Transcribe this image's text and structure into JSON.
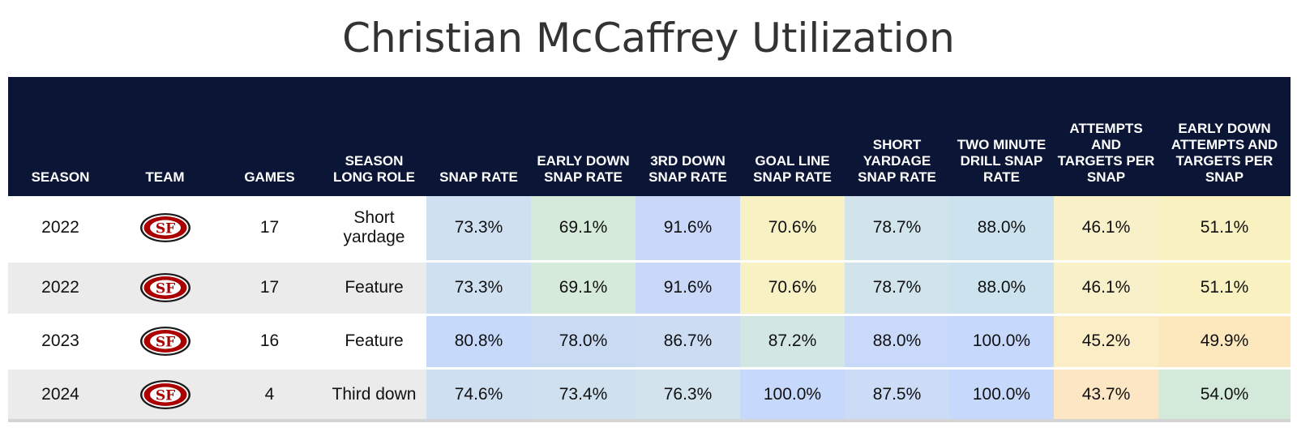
{
  "title": "Christian McCaffrey Utilization",
  "chart_data": {
    "type": "table",
    "title": "Christian McCaffrey Utilization",
    "columns": [
      "SEASON",
      "TEAM",
      "GAMES",
      "SEASON LONG ROLE",
      "SNAP RATE",
      "EARLY DOWN SNAP RATE",
      "3RD DOWN SNAP RATE",
      "GOAL LINE SNAP RATE",
      "SHORT YARDAGE SNAP RATE",
      "TWO MINUTE DRILL SNAP RATE",
      "ATTEMPTS AND TARGETS PER SNAP",
      "EARLY DOWN ATTEMPTS AND TARGETS PER SNAP"
    ],
    "team_logo": "49ers-logo",
    "rows": [
      {
        "season": "2022",
        "team": "49ers-logo",
        "games": "17",
        "role": "Short yardage",
        "snap_rate": "73.3%",
        "early_down_snap_rate": "69.1%",
        "third_down_snap_rate": "91.6%",
        "goal_line_snap_rate": "70.6%",
        "short_yardage_snap_rate": "78.7%",
        "two_minute_drill_snap_rate": "88.0%",
        "attempts_targets_per_snap": "46.1%",
        "early_down_attempts_targets_per_snap": "51.1%",
        "colors": [
          "#cfe0f1",
          "#d5ead9",
          "#c9d8f9",
          "#f7f1c4",
          "#d1e4ec",
          "#cce3ef",
          "#f7f0c8",
          "#faf1c1"
        ]
      },
      {
        "season": "2022",
        "team": "49ers-logo",
        "games": "17",
        "role": "Feature",
        "snap_rate": "73.3%",
        "early_down_snap_rate": "69.1%",
        "third_down_snap_rate": "91.6%",
        "goal_line_snap_rate": "70.6%",
        "short_yardage_snap_rate": "78.7%",
        "two_minute_drill_snap_rate": "88.0%",
        "attempts_targets_per_snap": "46.1%",
        "early_down_attempts_targets_per_snap": "51.1%",
        "colors": [
          "#cfe0f1",
          "#d5ead9",
          "#c9d8f9",
          "#f7f1c4",
          "#d1e4ec",
          "#cce3ef",
          "#f7f0c8",
          "#faf1c1"
        ]
      },
      {
        "season": "2023",
        "team": "49ers-logo",
        "games": "16",
        "role": "Feature",
        "snap_rate": "80.8%",
        "early_down_snap_rate": "78.0%",
        "third_down_snap_rate": "86.7%",
        "goal_line_snap_rate": "87.2%",
        "short_yardage_snap_rate": "88.0%",
        "two_minute_drill_snap_rate": "100.0%",
        "attempts_targets_per_snap": "45.2%",
        "early_down_attempts_targets_per_snap": "49.9%",
        "colors": [
          "#c6d9fa",
          "#c9dbf2",
          "#ccdcf3",
          "#d2e7e3",
          "#c8d9f9",
          "#c6d8fb",
          "#fbedc6",
          "#fde8bd"
        ]
      },
      {
        "season": "2024",
        "team": "49ers-logo",
        "games": "4",
        "role": "Third down",
        "snap_rate": "74.6%",
        "early_down_snap_rate": "73.4%",
        "third_down_snap_rate": "76.3%",
        "goal_line_snap_rate": "100.0%",
        "short_yardage_snap_rate": "87.5%",
        "two_minute_drill_snap_rate": "100.0%",
        "attempts_targets_per_snap": "43.7%",
        "early_down_attempts_targets_per_snap": "54.0%",
        "colors": [
          "#cddff0",
          "#cfe1ee",
          "#d2e3ed",
          "#c6d8fb",
          "#ccdcf6",
          "#c6d8fb",
          "#fde6c4",
          "#d3eadb"
        ]
      }
    ]
  }
}
